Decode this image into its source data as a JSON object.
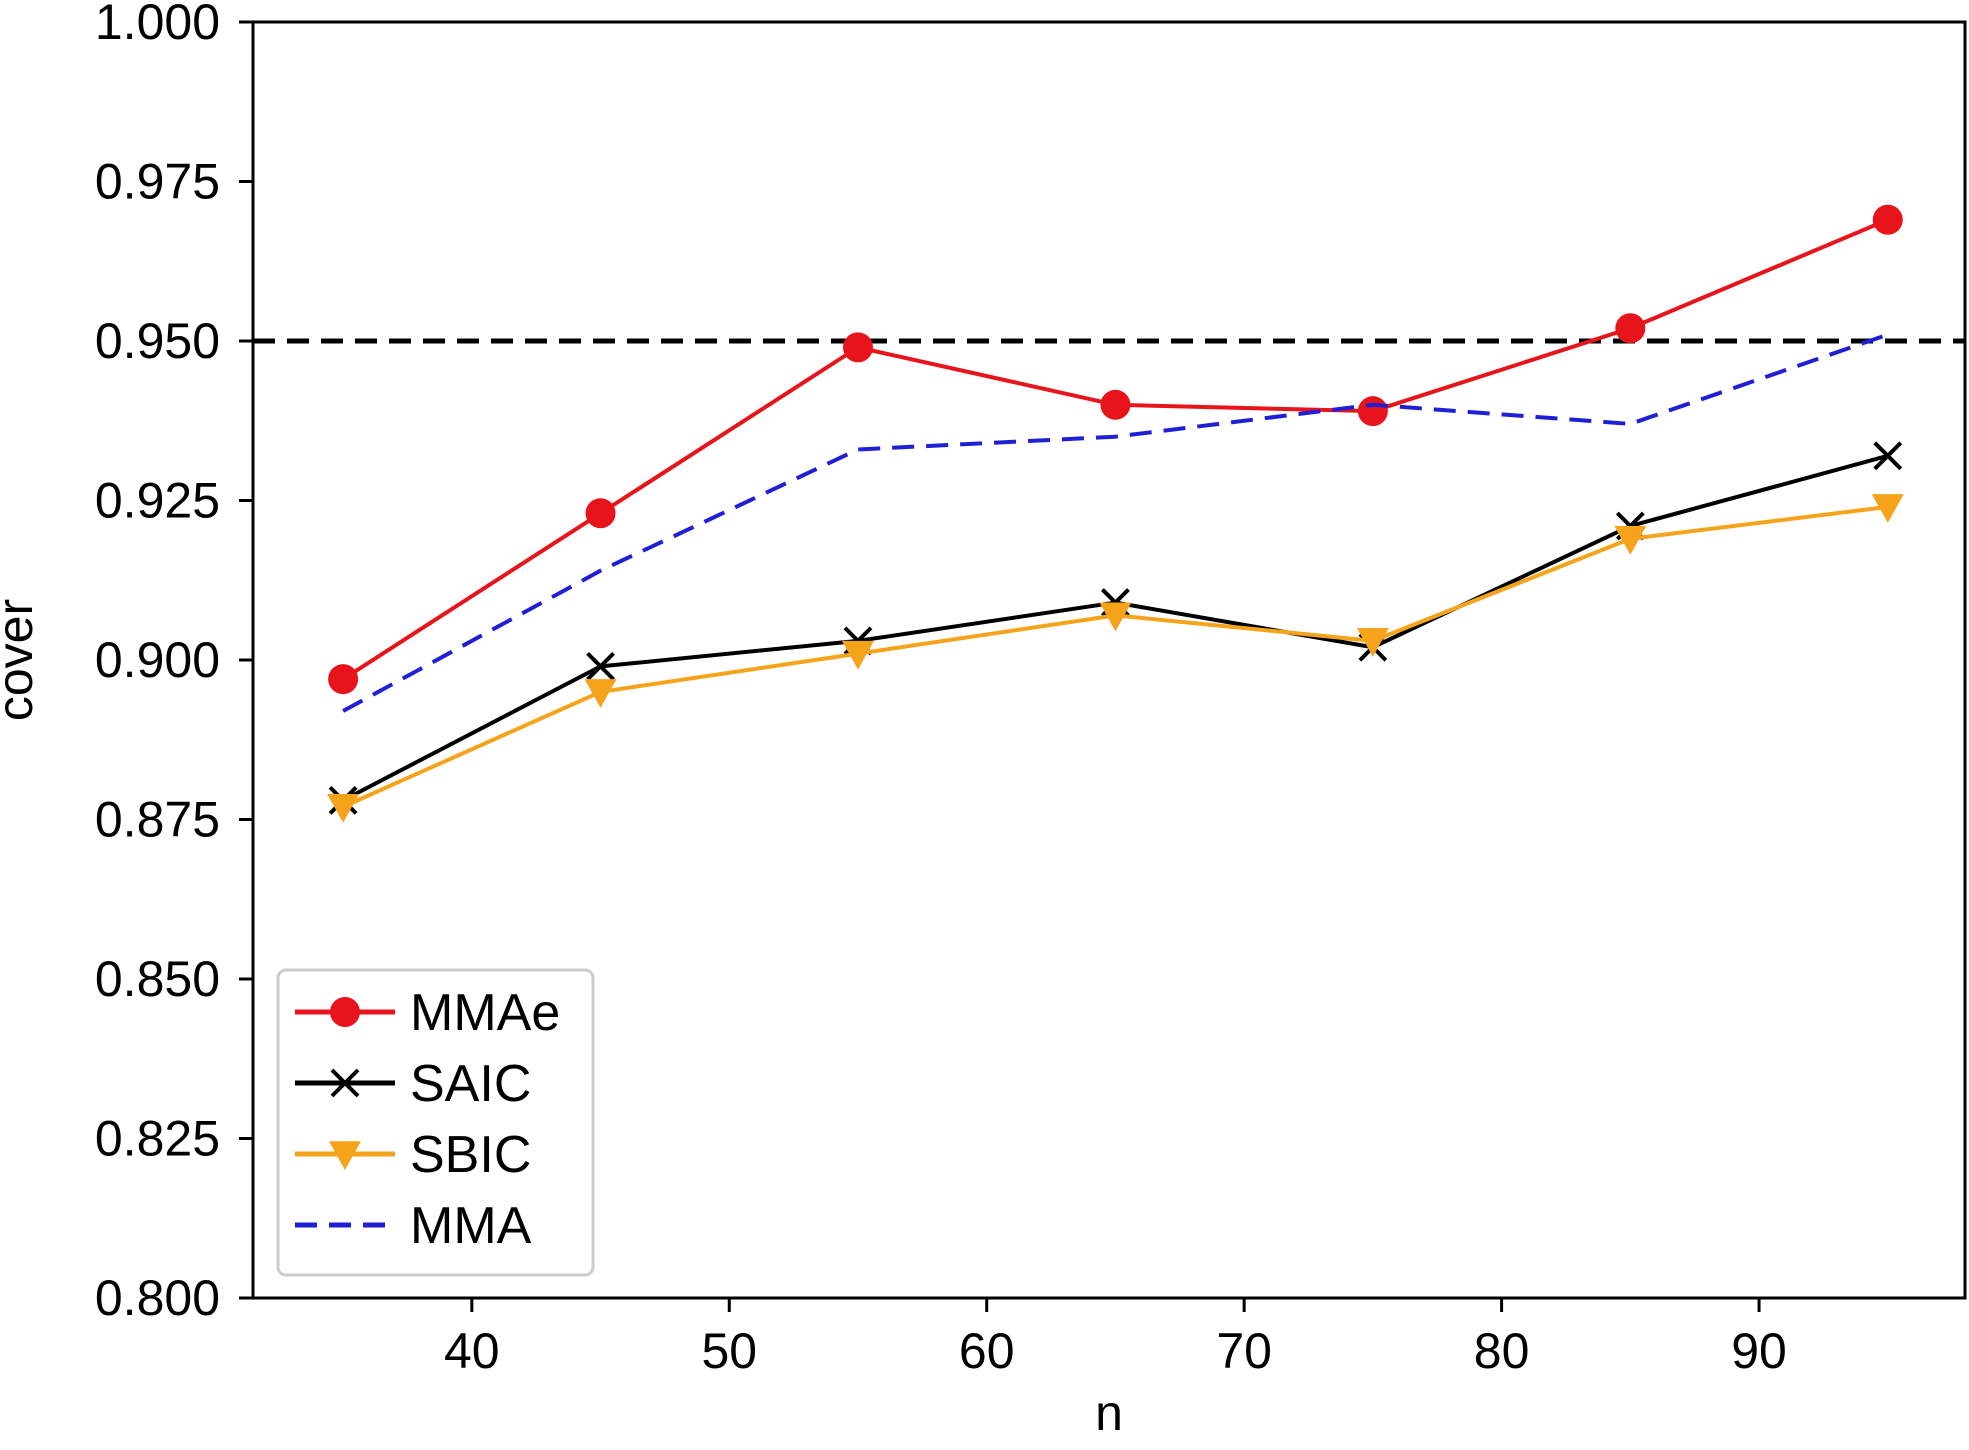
{
  "chart_data": {
    "type": "line",
    "title": "",
    "xlabel": "n",
    "ylabel": "cover",
    "x": [
      35,
      45,
      55,
      65,
      75,
      85,
      95
    ],
    "xlim": [
      31.5,
      98
    ],
    "ylim": [
      0.8,
      1.0
    ],
    "xticks": [
      40,
      50,
      60,
      70,
      80,
      90
    ],
    "yticks": [
      0.8,
      0.825,
      0.85,
      0.875,
      0.9,
      0.925,
      0.95,
      0.975,
      1.0
    ],
    "xtick_labels": [
      "40",
      "50",
      "60",
      "70",
      "80",
      "90"
    ],
    "ytick_labels": [
      "0.800",
      "0.825",
      "0.850",
      "0.875",
      "0.900",
      "0.925",
      "0.950",
      "0.975",
      "1.000"
    ],
    "reference_line": {
      "y": 0.95,
      "color": "#000000",
      "style": "dashed"
    },
    "legend_position": "lower-left",
    "grid": false,
    "series": [
      {
        "name": "MMAe",
        "color": "#e8141c",
        "marker": "circle",
        "style": "solid",
        "values": [
          0.897,
          0.923,
          0.949,
          0.94,
          0.939,
          0.952,
          0.969
        ]
      },
      {
        "name": "SAIC",
        "color": "#000000",
        "marker": "x",
        "style": "solid",
        "values": [
          0.878,
          0.899,
          0.903,
          0.909,
          0.902,
          0.921,
          0.932
        ]
      },
      {
        "name": "SBIC",
        "color": "#f5a31a",
        "marker": "triangle-down",
        "style": "solid",
        "values": [
          0.877,
          0.895,
          0.901,
          0.907,
          0.903,
          0.919,
          0.924
        ]
      },
      {
        "name": "MMA",
        "color": "#1f1fd6",
        "marker": "none",
        "style": "dashed",
        "values": [
          0.892,
          0.914,
          0.933,
          0.935,
          0.94,
          0.937,
          0.951
        ]
      }
    ]
  }
}
